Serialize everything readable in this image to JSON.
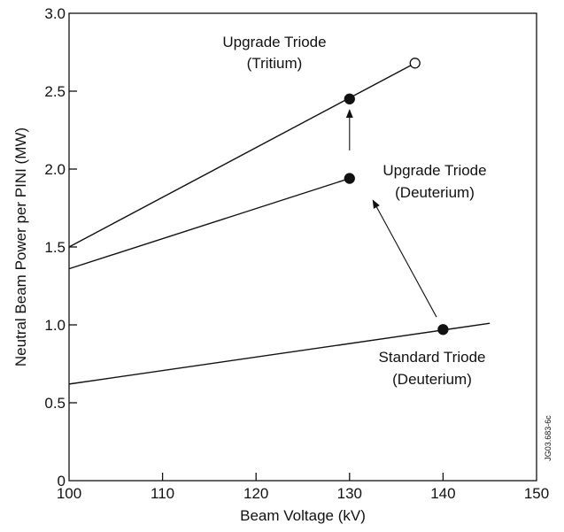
{
  "chart_data": {
    "type": "line",
    "title": "",
    "xlabel": "Beam Voltage (kV)",
    "ylabel": "Neutral Beam Power per PINI (MW)",
    "xlim": [
      100,
      150
    ],
    "ylim": [
      0,
      3.0
    ],
    "x_ticks": [
      100,
      110,
      120,
      130,
      140,
      150
    ],
    "y_ticks": [
      0,
      0.5,
      1.0,
      1.5,
      2.0,
      2.5,
      3.0
    ],
    "x_tick_labels": [
      "100",
      "110",
      "120",
      "130",
      "140",
      "150"
    ],
    "y_tick_labels": [
      "0",
      "0.5",
      "1.0",
      "1.5",
      "2.0",
      "2.5",
      "3.0"
    ],
    "grid": false,
    "legend": "none",
    "series": [
      {
        "line": [
          [
            100,
            1.5
          ],
          [
            137,
            2.68
          ]
        ],
        "points": [
          {
            "x": 130,
            "y": 2.45,
            "style": "filled"
          },
          {
            "x": 137,
            "y": 2.68,
            "style": "open"
          }
        ],
        "annotation": [
          "Upgrade Triode",
          "(Tritium)"
        ]
      },
      {
        "line": [
          [
            100,
            1.36
          ],
          [
            130,
            1.94
          ]
        ],
        "points": [
          {
            "x": 130,
            "y": 1.94,
            "style": "filled"
          }
        ],
        "annotation": [
          "Upgrade Triode",
          "(Deuterium)"
        ]
      },
      {
        "line": [
          [
            100,
            0.62
          ],
          [
            145,
            1.01
          ]
        ],
        "points": [
          {
            "x": 140,
            "y": 0.97,
            "style": "filled"
          }
        ],
        "annotation": [
          "Standard Triode",
          "(Deuterium)"
        ]
      }
    ],
    "arrows": [
      {
        "from": [
          130,
          2.12
        ],
        "to": [
          130,
          2.38
        ]
      },
      {
        "from": [
          139.3,
          1.05
        ],
        "to": [
          132.5,
          1.8
        ]
      }
    ],
    "figure_id": "JG03.683-6c"
  }
}
